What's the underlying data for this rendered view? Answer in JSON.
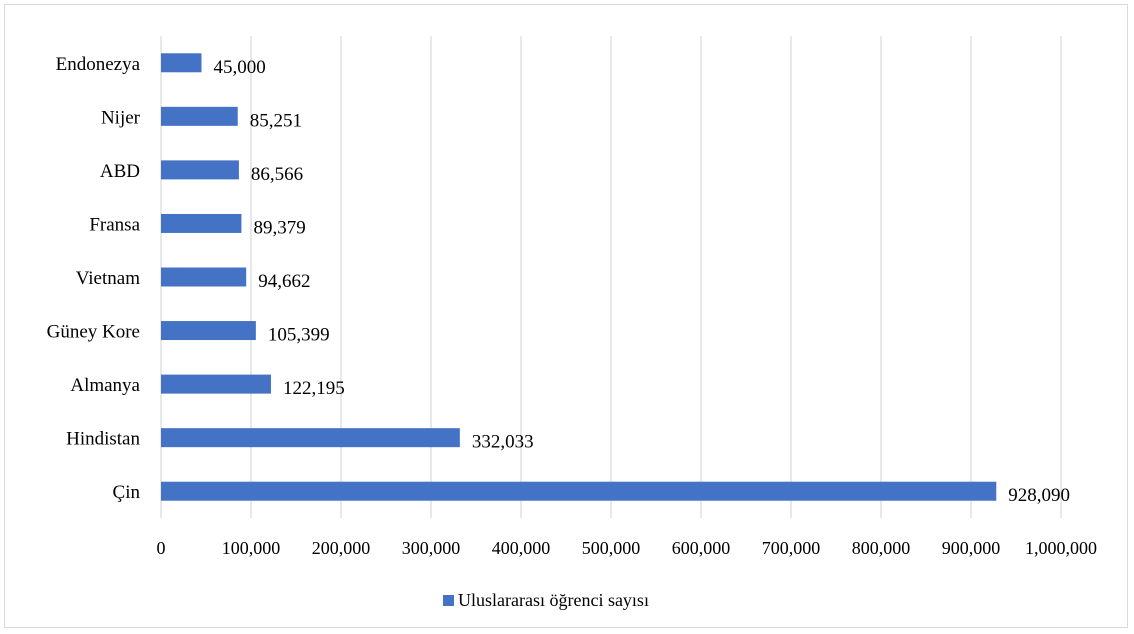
{
  "colors": {
    "bar": "#4472c4",
    "grid": "#d9d9d9"
  },
  "chart_data": {
    "type": "bar",
    "orientation": "horizontal",
    "categories": [
      "Çin",
      "Hindistan",
      "Almanya",
      "Güney Kore",
      "Vietnam",
      "Fransa",
      "ABD",
      "Nijer",
      "Endonezya"
    ],
    "series": [
      {
        "name": "Uluslararası öğrenci sayısı",
        "values": [
          928090,
          332033,
          122195,
          105399,
          94662,
          89379,
          86566,
          85251,
          45000
        ]
      }
    ],
    "data_labels": [
      "928,090",
      "332,033",
      "122,195",
      "105,399",
      "94,662",
      "89,379",
      "86,566",
      "85,251",
      "45,000"
    ],
    "xlim": [
      0,
      1000000
    ],
    "x_ticks": [
      "0",
      "100,000",
      "200,000",
      "300,000",
      "400,000",
      "500,000",
      "600,000",
      "700,000",
      "800,000",
      "900,000",
      "1,000,000"
    ],
    "grid": "vertical",
    "legend_position": "bottom",
    "title": "",
    "xlabel": "",
    "ylabel": ""
  }
}
